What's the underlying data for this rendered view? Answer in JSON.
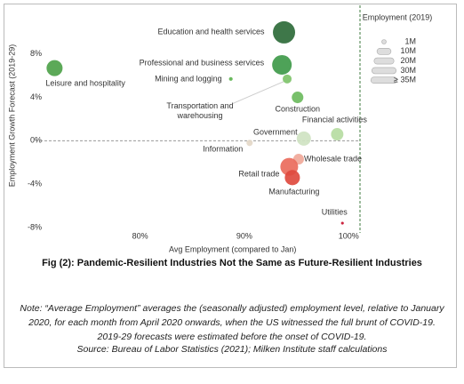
{
  "chart_data": {
    "type": "bubble",
    "x_label": "Avg Employment (compared to Jan)",
    "y_label": "Employment Growth Forecast (2019-29)",
    "xlim": [
      71,
      101
    ],
    "xticks": [
      {
        "value": 80,
        "label": "80%"
      },
      {
        "value": 90,
        "label": "90%"
      },
      {
        "value": 100,
        "label": "100%"
      }
    ],
    "ylim": [
      -8.5,
      12
    ],
    "yticks": [
      {
        "value": 8,
        "label": "8%"
      },
      {
        "value": 4,
        "label": "4%"
      },
      {
        "value": 0,
        "label": "0%"
      },
      {
        "value": -4,
        "label": "-4%"
      },
      {
        "value": -8,
        "label": "-8%"
      }
    ],
    "categories": [
      "Education and health services",
      "Professional and business services",
      "Mining and logging",
      "Leisure and hospitality",
      "Transportation and warehousing",
      "Construction",
      "Financial activities",
      "Government",
      "Information",
      "Wholesale trade",
      "Retail trade",
      "Manufacturing",
      "Utilities"
    ],
    "x": [
      93.8,
      93.6,
      88.7,
      71.8,
      94.1,
      95.1,
      98.9,
      95.7,
      90.5,
      95.2,
      94.3,
      94.6,
      99.4
    ],
    "values": [
      10.0,
      7.0,
      5.7,
      6.7,
      5.7,
      4.0,
      0.6,
      0.2,
      -0.2,
      -1.7,
      -2.4,
      -3.4,
      -7.6
    ],
    "sizes": [
      25,
      19.4,
      0.7,
      13,
      4,
      6.8,
      7.8,
      10.2,
      2,
      5.8,
      16,
      11.6,
      0.4
    ],
    "colors": [
      "#2e6b3a",
      "#3f9a4a",
      "#5db350",
      "#4ea24a",
      "#7ec36a",
      "#6cbb5e",
      "#b6dca2",
      "#cfe3c2",
      "#e4d8c8",
      "#f0a899",
      "#ea6b5c",
      "#de4a3e",
      "#c8102e"
    ],
    "size_legend_title": "Employment (2019)",
    "size_legend": [
      {
        "value": 1,
        "label": "1M"
      },
      {
        "value": 10,
        "label": "10M"
      },
      {
        "value": 20,
        "label": "20M"
      },
      {
        "value": 30,
        "label": "30M"
      },
      {
        "value": 35,
        "label": "≥ 35M"
      }
    ]
  },
  "figure": {
    "caption": "Fig (2): Pandemic-Resilient Industries Not the Same as Future-Resilient Industries",
    "note": "Note: “Average Employment” averages the (seasonally adjusted) employment level, relative to January 2020, for each month from April 2020 onwards, when the US witnessed the full brunt of COVID-19. 2019-29 forecasts were estimated before the onset of COVID-19.",
    "source": "Source: Bureau of Labor Statistics (2021); Milken Institute staff calculations"
  }
}
